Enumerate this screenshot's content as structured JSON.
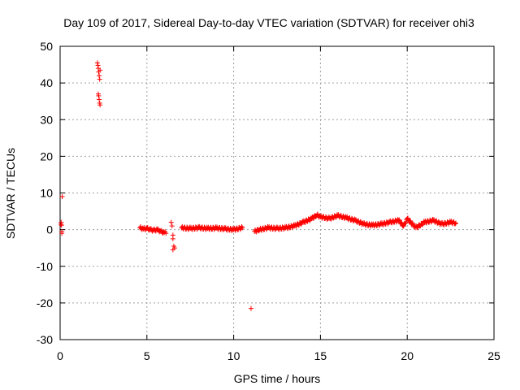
{
  "chart_data": {
    "type": "scatter",
    "title": "Day 109 of 2017, Sidereal Day-to-day VTEC variation (SDTVAR) for receiver ohi3",
    "xlabel": "GPS time / hours",
    "ylabel": "SDTVAR / TECUs",
    "xlim": [
      0,
      25
    ],
    "ylim": [
      -30,
      50
    ],
    "xticks": [
      "0",
      "5",
      "10",
      "15",
      "20",
      "25"
    ],
    "yticks": [
      "-30",
      "-20",
      "-10",
      "0",
      "10",
      "20",
      "30",
      "40",
      "50"
    ],
    "grid": true,
    "marker": "+",
    "color": "#ff0000",
    "series": [
      {
        "name": "SDTVAR",
        "points": [
          [
            0.05,
            1.5
          ],
          [
            0.06,
            2.0
          ],
          [
            0.08,
            1.2
          ],
          [
            0.1,
            -0.5
          ],
          [
            0.1,
            -1.0
          ],
          [
            0.12,
            9.0
          ],
          [
            2.15,
            45.5
          ],
          [
            2.18,
            44.8
          ],
          [
            2.2,
            44.0
          ],
          [
            2.22,
            43.0
          ],
          [
            2.25,
            42.0
          ],
          [
            2.28,
            41.0
          ],
          [
            2.3,
            43.5
          ],
          [
            2.2,
            37.0
          ],
          [
            2.22,
            36.5
          ],
          [
            2.25,
            35.5
          ],
          [
            2.28,
            34.5
          ],
          [
            2.3,
            34.0
          ],
          [
            4.6,
            0.5
          ],
          [
            4.8,
            0.2
          ],
          [
            5.0,
            0.3
          ],
          [
            5.2,
            0.0
          ],
          [
            5.4,
            -0.2
          ],
          [
            5.6,
            0.0
          ],
          [
            5.8,
            -0.5
          ],
          [
            6.0,
            -0.8
          ],
          [
            6.1,
            -1.0
          ],
          [
            6.4,
            2.0
          ],
          [
            6.45,
            1.0
          ],
          [
            6.5,
            -1.5
          ],
          [
            6.5,
            -2.5
          ],
          [
            6.5,
            -5.5
          ],
          [
            6.55,
            -4.5
          ],
          [
            6.6,
            -5.0
          ],
          [
            7.0,
            0.5
          ],
          [
            7.5,
            0.3
          ],
          [
            8.0,
            0.5
          ],
          [
            8.5,
            0.3
          ],
          [
            9.0,
            0.4
          ],
          [
            9.5,
            0.2
          ],
          [
            10.0,
            0.0
          ],
          [
            10.5,
            0.5
          ],
          [
            11.0,
            -21.5
          ],
          [
            11.2,
            -0.5
          ],
          [
            11.5,
            0.0
          ],
          [
            12.0,
            0.5
          ],
          [
            12.5,
            0.3
          ],
          [
            13.0,
            0.5
          ],
          [
            13.5,
            1.0
          ],
          [
            14.0,
            2.0
          ],
          [
            14.5,
            3.0
          ],
          [
            14.8,
            4.0
          ],
          [
            15.0,
            3.5
          ],
          [
            15.5,
            3.0
          ],
          [
            16.0,
            3.8
          ],
          [
            16.5,
            3.2
          ],
          [
            17.0,
            2.5
          ],
          [
            17.5,
            1.5
          ],
          [
            18.0,
            1.2
          ],
          [
            18.5,
            1.5
          ],
          [
            19.0,
            2.0
          ],
          [
            19.5,
            2.5
          ],
          [
            19.8,
            1.0
          ],
          [
            20.0,
            3.0
          ],
          [
            20.5,
            0.5
          ],
          [
            21.0,
            2.0
          ],
          [
            21.5,
            2.5
          ],
          [
            22.0,
            1.5
          ],
          [
            22.5,
            2.0
          ],
          [
            22.8,
            1.8
          ]
        ]
      }
    ]
  }
}
